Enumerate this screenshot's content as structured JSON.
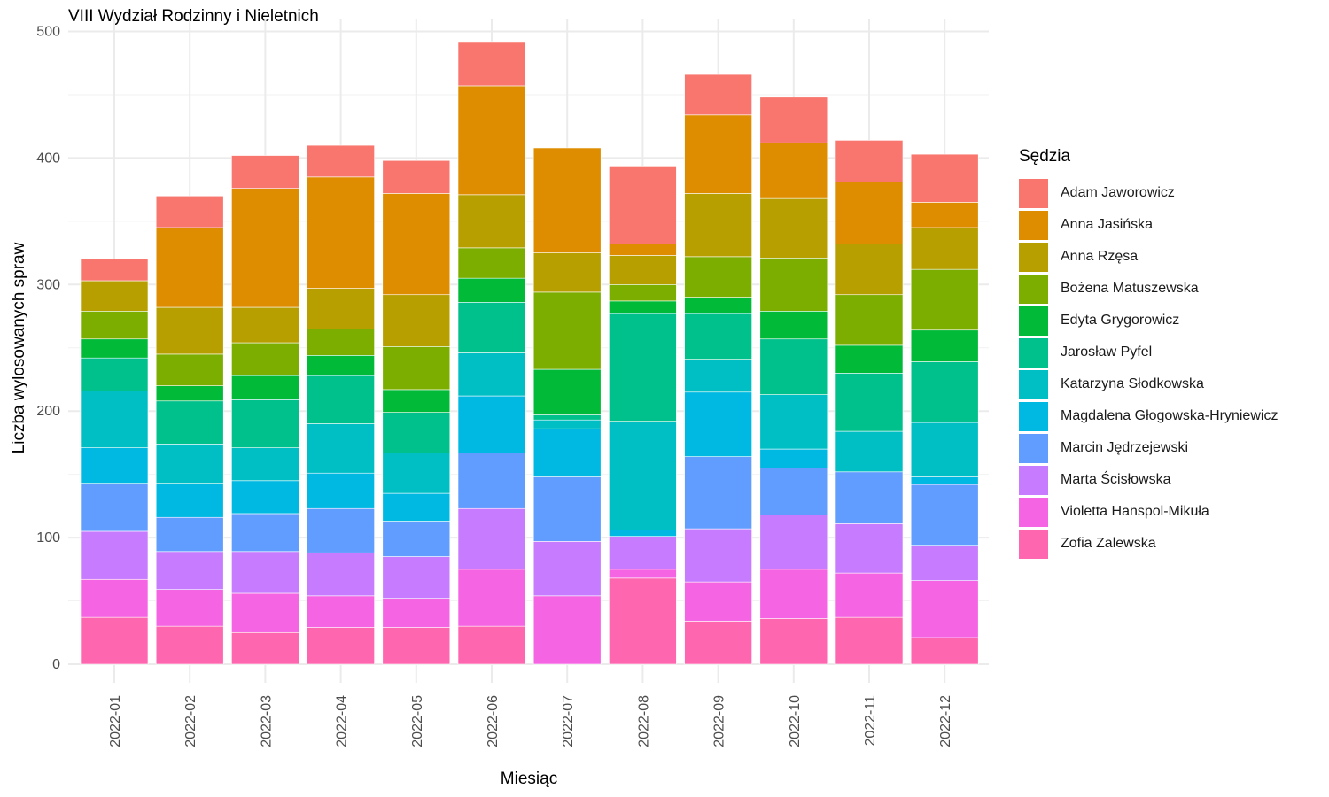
{
  "chart_data": {
    "type": "bar",
    "stacked": true,
    "title": "VIII Wydział Rodzinny i Nieletnich",
    "xlabel": "Miesiąc",
    "ylabel": "Liczba wylosowanych spraw",
    "ylim": [
      0,
      500
    ],
    "yticks": [
      "0",
      "100",
      "200",
      "300",
      "400",
      "500"
    ],
    "grid": true,
    "legend": {
      "title": "Sędzia",
      "position": "right"
    },
    "categories": [
      "2022-01",
      "2022-02",
      "2022-03",
      "2022-04",
      "2022-05",
      "2022-06",
      "2022-07",
      "2022-08",
      "2022-09",
      "2022-10",
      "2022-11",
      "2022-12"
    ],
    "series": [
      {
        "name": "Zofia Zalewska",
        "color": "#FF66B0",
        "values": [
          37,
          30,
          25,
          29,
          29,
          30,
          0,
          68,
          34,
          36,
          37,
          21
        ]
      },
      {
        "name": "Violetta Hanspol-Mikuła",
        "color": "#F564E3",
        "values": [
          30,
          29,
          31,
          25,
          23,
          45,
          54,
          7,
          31,
          39,
          35,
          45
        ]
      },
      {
        "name": "Marta Ścisłowska",
        "color": "#C77CFF",
        "values": [
          38,
          30,
          33,
          34,
          33,
          48,
          43,
          26,
          42,
          43,
          39,
          28
        ]
      },
      {
        "name": "Marcin Jędrzejewski",
        "color": "#619CFF",
        "values": [
          38,
          27,
          30,
          35,
          28,
          44,
          51,
          0,
          57,
          37,
          41,
          48
        ]
      },
      {
        "name": "Magdalena Głogowska-Hryniewicz",
        "color": "#00B9E3",
        "values": [
          28,
          27,
          26,
          28,
          22,
          45,
          38,
          5,
          51,
          15,
          0,
          6
        ]
      },
      {
        "name": "Katarzyna Słodkowska",
        "color": "#00BFC4",
        "values": [
          45,
          31,
          26,
          39,
          32,
          34,
          7,
          86,
          26,
          43,
          32,
          43
        ]
      },
      {
        "name": "Jarosław Pyfel",
        "color": "#00C08B",
        "values": [
          26,
          34,
          38,
          38,
          32,
          40,
          4,
          85,
          36,
          44,
          46,
          48
        ]
      },
      {
        "name": "Edyta Grygorowicz",
        "color": "#00BA38",
        "values": [
          15,
          12,
          19,
          16,
          18,
          19,
          36,
          10,
          13,
          22,
          22,
          25
        ]
      },
      {
        "name": "Bożena Matuszewska",
        "color": "#7CAE00",
        "values": [
          22,
          25,
          26,
          21,
          34,
          24,
          61,
          13,
          32,
          42,
          40,
          48
        ]
      },
      {
        "name": "Anna Rzęsa",
        "color": "#B79F00",
        "values": [
          24,
          37,
          28,
          32,
          41,
          42,
          31,
          23,
          50,
          47,
          40,
          33
        ]
      },
      {
        "name": "Anna Jasińska",
        "color": "#DE8C00",
        "values": [
          0,
          63,
          94,
          88,
          80,
          86,
          83,
          9,
          62,
          44,
          49,
          20
        ]
      },
      {
        "name": "Adam Jaworowicz",
        "color": "#F8766D",
        "values": [
          17,
          25,
          26,
          25,
          26,
          35,
          0,
          61,
          32,
          36,
          33,
          38
        ]
      }
    ]
  }
}
